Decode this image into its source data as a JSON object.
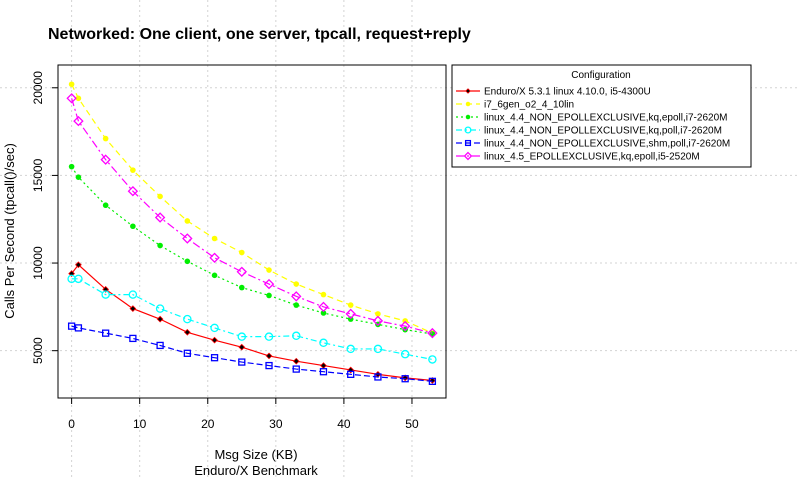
{
  "chart_data": {
    "type": "line",
    "title": "Networked: One client, one server, tpcall, request+reply",
    "xlabel": "Msg Size (KB)",
    "xlabel2": "Enduro/X Benchmark",
    "ylabel": "Calls Per Second (tpcall()/sec)",
    "xlim": [
      -2,
      55
    ],
    "ylim": [
      2300,
      21300
    ],
    "xticks": [
      0,
      10,
      20,
      30,
      40,
      50
    ],
    "yticks": [
      5000,
      10000,
      15000,
      20000
    ],
    "grid": true,
    "legend_title": "Configuration",
    "legend_position": "right",
    "series": [
      {
        "name": "Enduro/X 5.3.1 linux 4.10.0, i5-4300U",
        "color": "#ff0000",
        "marker": "diamond",
        "dash": "",
        "dot_color": "#000000",
        "x": [
          0,
          1,
          5,
          9,
          13,
          17,
          21,
          25,
          29,
          33,
          37,
          41,
          45,
          49,
          53
        ],
        "y": [
          9400,
          9900,
          8500,
          7400,
          6800,
          6050,
          5600,
          5200,
          4700,
          4400,
          4150,
          3900,
          3650,
          3450,
          3300
        ]
      },
      {
        "name": "i7_6gen_o2_4_10lin",
        "color": "#ffff00",
        "marker": "dot",
        "dash": "6 4",
        "dot_color": "#ffff00",
        "x": [
          0,
          1,
          5,
          9,
          13,
          17,
          21,
          25,
          29,
          33,
          37,
          41,
          45,
          49,
          53
        ],
        "y": [
          20200,
          19400,
          17100,
          15300,
          13800,
          12400,
          11400,
          10600,
          9600,
          8800,
          8200,
          7600,
          7100,
          6700,
          6000
        ]
      },
      {
        "name": "linux_4.4_NON_EPOLLEXCLUSIVE,kq,epoll,i7-2620M",
        "color": "#00ee00",
        "marker": "dot",
        "dash": "2 3",
        "dot_color": "#00ee00",
        "x": [
          0,
          1,
          5,
          9,
          13,
          17,
          21,
          25,
          29,
          33,
          37,
          41,
          45,
          49,
          53
        ],
        "y": [
          15500,
          14900,
          13300,
          12100,
          11000,
          10100,
          9300,
          8600,
          8150,
          7600,
          7150,
          6800,
          6500,
          6200,
          5950
        ]
      },
      {
        "name": "linux_4.4_NON_EPOLLEXCLUSIVE,kq,poll,i7-2620M",
        "color": "#00ffff",
        "marker": "circle",
        "dash": "6 3 2 3",
        "dot_color": "#00ffff",
        "x": [
          0,
          1,
          5,
          9,
          13,
          17,
          21,
          25,
          29,
          33,
          37,
          41,
          45,
          49,
          53
        ],
        "y": [
          9100,
          9100,
          8200,
          8200,
          7400,
          6800,
          6300,
          5800,
          5800,
          5850,
          5450,
          5100,
          5100,
          4800,
          4500
        ]
      },
      {
        "name": "linux_4.4_NON_EPOLLEXCLUSIVE,shm,poll,i7-2620M",
        "color": "#0000ff",
        "marker": "square",
        "dash": "6 3",
        "dot_color": "#0000ff",
        "x": [
          0,
          1,
          5,
          9,
          13,
          17,
          21,
          25,
          29,
          33,
          37,
          41,
          45,
          49,
          53
        ],
        "y": [
          6400,
          6300,
          6000,
          5700,
          5300,
          4850,
          4600,
          4350,
          4150,
          3950,
          3800,
          3650,
          3500,
          3400,
          3250
        ]
      },
      {
        "name": "linux_4.5_EPOLLEXCLUSIVE,kq,epoll,i5-2520M",
        "color": "#ff00ff",
        "marker": "diamond-open",
        "dash": "8 3 2 3",
        "dot_color": "#ff00ff",
        "x": [
          0,
          1,
          5,
          9,
          13,
          17,
          21,
          25,
          29,
          33,
          37,
          41,
          45,
          49,
          53
        ],
        "y": [
          19400,
          18100,
          15900,
          14100,
          12600,
          11400,
          10300,
          9500,
          8800,
          8100,
          7500,
          7100,
          6700,
          6400,
          6000
        ]
      }
    ]
  }
}
